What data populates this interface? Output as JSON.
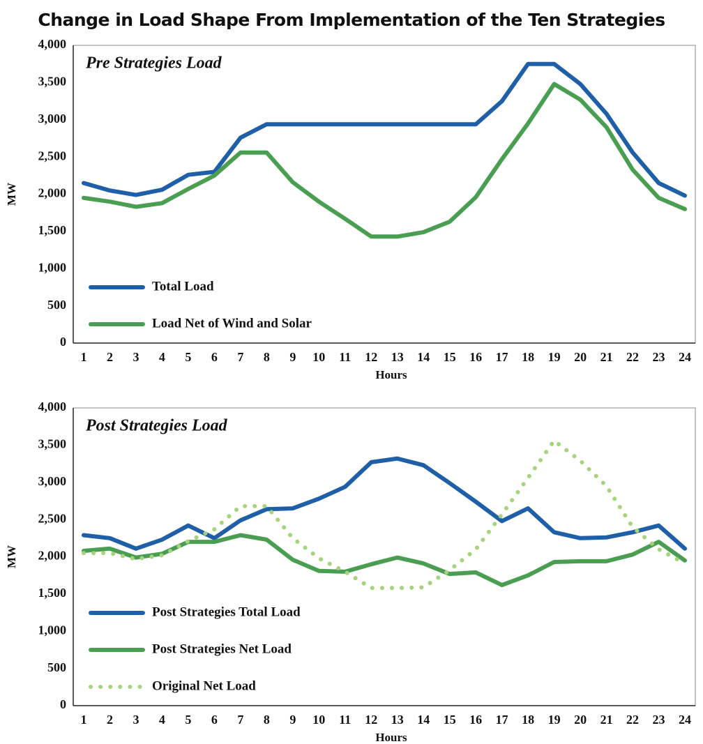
{
  "title": "Change in Load Shape From Implementation of the Ten Strategies",
  "chart_data": [
    {
      "type": "line",
      "title": "Pre Strategies Load",
      "xlabel": "Hours",
      "ylabel": "MW",
      "x": [
        1,
        2,
        3,
        4,
        5,
        6,
        7,
        8,
        9,
        10,
        11,
        12,
        13,
        14,
        15,
        16,
        17,
        18,
        19,
        20,
        21,
        22,
        23,
        24
      ],
      "xlim": [
        0.6,
        24.4
      ],
      "xticks": [
        1,
        2,
        3,
        4,
        5,
        6,
        7,
        8,
        9,
        10,
        11,
        12,
        13,
        14,
        15,
        16,
        17,
        18,
        19,
        20,
        21,
        22,
        23,
        24
      ],
      "ylim": [
        0,
        4000
      ],
      "yticks": [
        0,
        500,
        {
          "value": 1000,
          "label": "1,000"
        },
        {
          "value": 1500,
          "label": "1,500"
        },
        {
          "value": 2000,
          "label": "2,000"
        },
        {
          "value": 2500,
          "label": "2,500"
        },
        {
          "value": 3000,
          "label": "3,000"
        },
        {
          "value": 3500,
          "label": "3,500"
        },
        {
          "value": 4000,
          "label": "4,000"
        }
      ],
      "legend": "lower left",
      "series": [
        {
          "name": "Total Load",
          "color": "#1f5fa8",
          "linestyle": "solid",
          "values": [
            2150,
            2050,
            1990,
            2060,
            2260,
            2300,
            2760,
            2940,
            2940,
            2940,
            2940,
            2940,
            2940,
            2940,
            2940,
            2940,
            3250,
            3750,
            3750,
            3480,
            3080,
            2560,
            2150,
            1980
          ]
        },
        {
          "name": "Load Net of Wind and Solar",
          "color": "#4a9e52",
          "linestyle": "solid",
          "values": [
            1950,
            1900,
            1830,
            1880,
            2070,
            2250,
            2560,
            2560,
            2160,
            1900,
            1670,
            1430,
            1430,
            1490,
            1630,
            1960,
            2470,
            2950,
            3480,
            3270,
            2900,
            2330,
            1950,
            1800
          ]
        }
      ]
    },
    {
      "type": "line",
      "title": "Post Strategies Load",
      "xlabel": "Hours",
      "ylabel": "MW",
      "x": [
        1,
        2,
        3,
        4,
        5,
        6,
        7,
        8,
        9,
        10,
        11,
        12,
        13,
        14,
        15,
        16,
        17,
        18,
        19,
        20,
        21,
        22,
        23,
        24
      ],
      "xlim": [
        0.6,
        24.4
      ],
      "xticks": [
        1,
        2,
        3,
        4,
        5,
        6,
        7,
        8,
        9,
        10,
        11,
        12,
        13,
        14,
        15,
        16,
        17,
        18,
        19,
        20,
        21,
        22,
        23,
        24
      ],
      "ylim": [
        0,
        4000
      ],
      "yticks": [
        0,
        500,
        {
          "value": 1000,
          "label": "1,000"
        },
        {
          "value": 1500,
          "label": "1,500"
        },
        {
          "value": 2000,
          "label": "2,000"
        },
        {
          "value": 2500,
          "label": "2,500"
        },
        {
          "value": 3000,
          "label": "3,000"
        },
        {
          "value": 3500,
          "label": "3,500"
        },
        {
          "value": 4000,
          "label": "4,000"
        }
      ],
      "legend": "lower left",
      "series": [
        {
          "name": "Post Strategies Total Load",
          "color": "#1f5fa8",
          "linestyle": "solid",
          "values": [
            2290,
            2250,
            2110,
            2230,
            2420,
            2250,
            2490,
            2640,
            2650,
            2780,
            2940,
            3270,
            3320,
            3230,
            2990,
            2740,
            2480,
            2650,
            2330,
            2250,
            2260,
            2330,
            2420,
            2110
          ]
        },
        {
          "name": "Post Strategies Net Load",
          "color": "#4a9e52",
          "linestyle": "solid",
          "values": [
            2080,
            2110,
            1990,
            2040,
            2200,
            2200,
            2290,
            2230,
            1960,
            1810,
            1800,
            1900,
            1990,
            1910,
            1770,
            1790,
            1620,
            1750,
            1930,
            1940,
            1940,
            2030,
            2200,
            1950
          ]
        },
        {
          "name": "Original Net Load",
          "color": "#a6d47c",
          "linestyle": "dotted",
          "values": [
            2050,
            2050,
            1970,
            2020,
            2210,
            2370,
            2680,
            2680,
            2250,
            1980,
            1800,
            1580,
            1580,
            1590,
            1820,
            2100,
            2570,
            3060,
            3560,
            3290,
            2950,
            2400,
            2100,
            1910
          ]
        }
      ]
    }
  ]
}
